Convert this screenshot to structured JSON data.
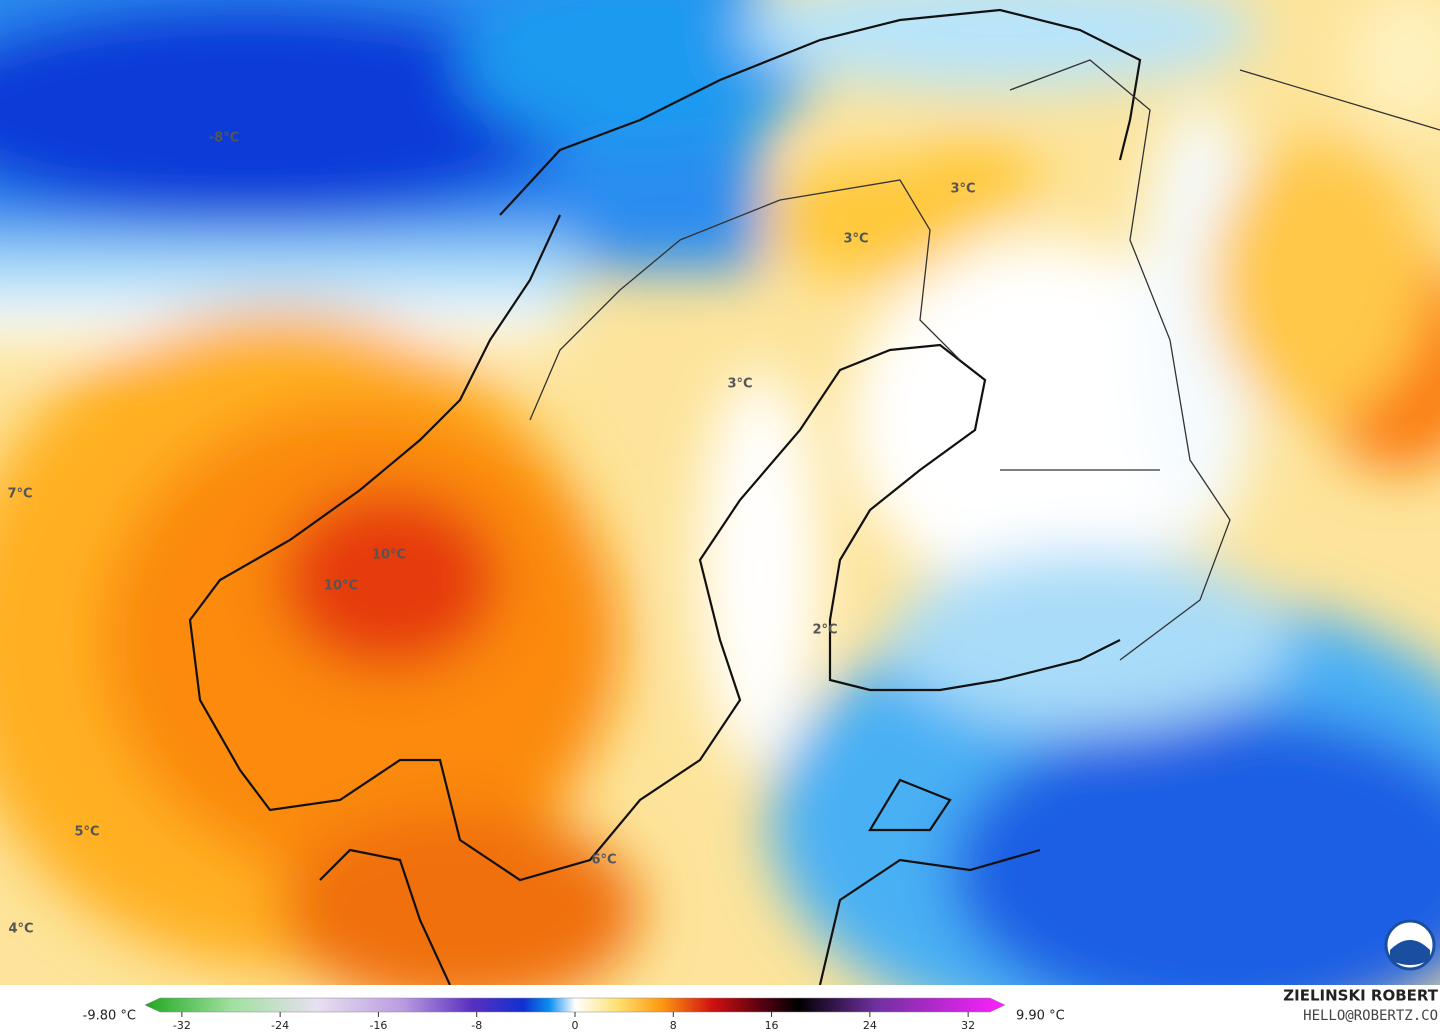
{
  "map": {
    "labels": [
      "-8°C",
      "3°C",
      "3°C",
      "3°C",
      "7°C",
      "10°C",
      "10°C",
      "5°C",
      "6°C",
      "4°C",
      "2°C"
    ]
  },
  "colorbar": {
    "min_label": "-9.80 °C",
    "max_label": "9.90 °C",
    "lim": [
      -35,
      35
    ],
    "ticks": [
      -32,
      -24,
      -16,
      -8,
      0,
      8,
      16,
      24,
      32
    ]
  },
  "credit": {
    "name": "ZIELINSKI ROBERT",
    "contact": "HELLO@ROBERTZ.CO"
  }
}
